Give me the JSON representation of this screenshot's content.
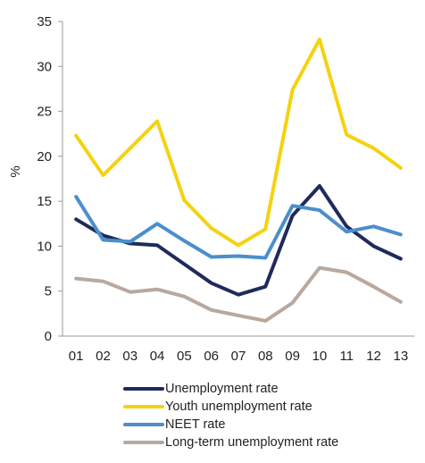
{
  "chart_data": {
    "type": "line",
    "title": "",
    "xlabel": "",
    "ylabel": "%",
    "ylim": [
      0,
      35
    ],
    "yticks": [
      0,
      5,
      10,
      15,
      20,
      25,
      30,
      35
    ],
    "categories": [
      "01",
      "02",
      "03",
      "04",
      "05",
      "06",
      "07",
      "08",
      "09",
      "10",
      "11",
      "12",
      "13"
    ],
    "grid": false,
    "legend_position": "bottom",
    "series": [
      {
        "name": "Unemployment rate",
        "color": "#1f2a5c",
        "values": [
          13.0,
          11.2,
          10.3,
          10.1,
          8.0,
          5.9,
          4.6,
          5.5,
          13.4,
          16.7,
          12.2,
          10.0,
          8.6
        ]
      },
      {
        "name": "Youth unemployment rate",
        "color": "#f5d210",
        "values": [
          22.3,
          17.9,
          20.9,
          23.9,
          15.1,
          12.0,
          10.1,
          11.9,
          27.4,
          33.0,
          22.4,
          20.9,
          18.7
        ]
      },
      {
        "name": "NEET rate",
        "color": "#4a8fcc",
        "values": [
          15.5,
          10.7,
          10.5,
          12.5,
          10.6,
          8.8,
          8.9,
          8.7,
          14.5,
          14.0,
          11.6,
          12.2,
          11.3
        ]
      },
      {
        "name": "Long-term unemployment rate",
        "color": "#b8a89e",
        "values": [
          6.4,
          6.1,
          4.9,
          5.2,
          4.4,
          2.9,
          2.3,
          1.7,
          3.7,
          7.6,
          7.1,
          5.5,
          3.8
        ]
      }
    ]
  }
}
